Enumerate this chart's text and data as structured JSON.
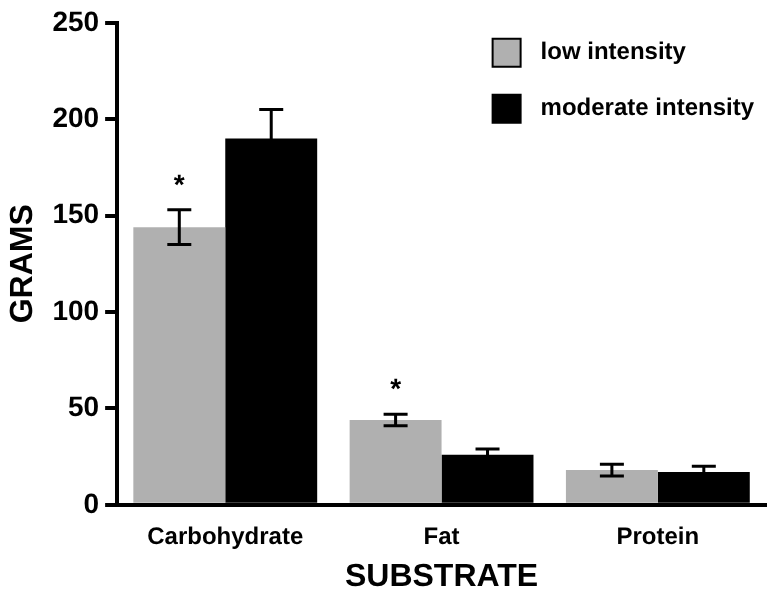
{
  "chart_data": {
    "type": "bar",
    "xlabel": "SUBSTRATE",
    "ylabel": "GRAMS",
    "categories": [
      "Carbohydrate",
      "Fat",
      "Protein"
    ],
    "series": [
      {
        "name": "low intensity",
        "color": "#b0b0b0",
        "values": [
          144,
          44,
          18
        ],
        "errors": [
          9,
          3,
          3
        ]
      },
      {
        "name": "moderate intensity",
        "color": "#000000",
        "values": [
          190,
          26,
          17
        ],
        "errors": [
          15,
          3,
          3
        ]
      }
    ],
    "ylim": [
      0,
      250
    ],
    "yticks": [
      0,
      50,
      100,
      150,
      200,
      250
    ],
    "grid": false,
    "legend": "top right",
    "annotations": [
      {
        "text": "*",
        "x": "Carbohydrate",
        "y": 153
      },
      {
        "text": "*",
        "x": "Fat",
        "y": 47
      }
    ]
  }
}
